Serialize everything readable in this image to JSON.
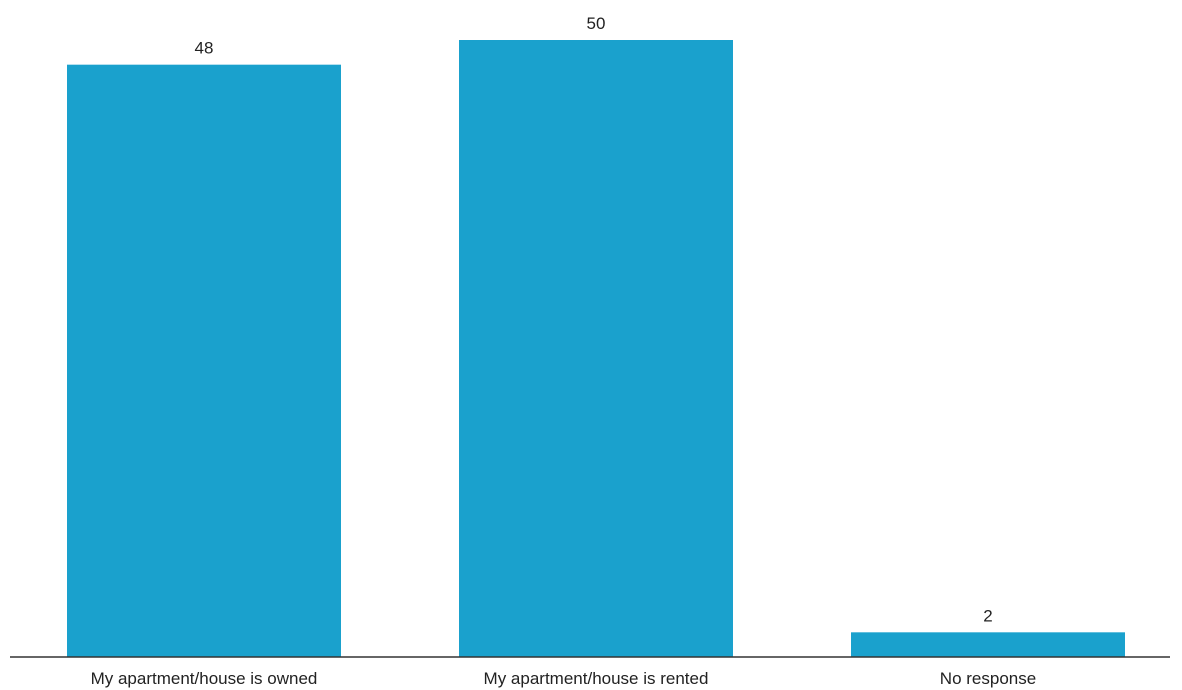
{
  "chart_data": {
    "type": "bar",
    "categories": [
      "My apartment/house is owned",
      "My apartment/house is rented",
      "No response"
    ],
    "values": [
      48,
      50,
      2
    ],
    "ylim": [
      0,
      50
    ],
    "grid": false,
    "legend": "none",
    "bar_color": "#1aa1cd",
    "axis_color": "#333333"
  }
}
